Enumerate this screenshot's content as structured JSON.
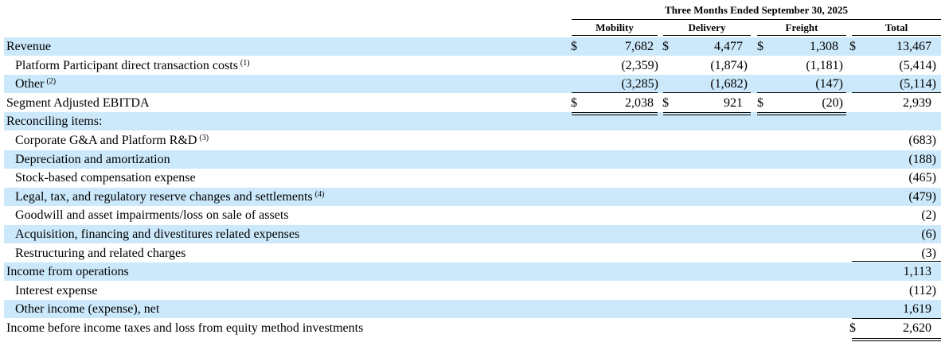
{
  "header": {
    "period": "Three Months Ended September 30, 2025",
    "columns": [
      "Mobility",
      "Delivery",
      "Freight",
      "Total"
    ]
  },
  "rows": [
    {
      "label": "Revenue",
      "footnote": "",
      "indent": false,
      "shade": true,
      "cells": [
        {
          "cur": "$",
          "val": "7,682"
        },
        {
          "cur": "$",
          "val": "4,477"
        },
        {
          "cur": "$",
          "val": "1,308"
        },
        {
          "cur": "$",
          "val": "13,467"
        }
      ]
    },
    {
      "label": "Platform Participant direct transaction costs",
      "footnote": "(1)",
      "indent": true,
      "shade": false,
      "cells": [
        {
          "cur": "",
          "val": "(2,359)"
        },
        {
          "cur": "",
          "val": "(1,874)"
        },
        {
          "cur": "",
          "val": "(1,181)"
        },
        {
          "cur": "",
          "val": "(5,414)"
        }
      ]
    },
    {
      "label": "Other",
      "footnote": "(2)",
      "indent": true,
      "shade": true,
      "cells": [
        {
          "cur": "",
          "val": "(3,285)"
        },
        {
          "cur": "",
          "val": "(1,682)"
        },
        {
          "cur": "",
          "val": "(147)"
        },
        {
          "cur": "",
          "val": "(5,114)"
        }
      ]
    },
    {
      "label": "Segment Adjusted EBITDA",
      "footnote": "",
      "indent": false,
      "shade": false,
      "cells": [
        {
          "cur": "$",
          "val": "2,038"
        },
        {
          "cur": "$",
          "val": "921"
        },
        {
          "cur": "$",
          "val": "(20)"
        },
        {
          "cur": "",
          "val": "2,939"
        }
      ]
    },
    {
      "label": "Reconciling items:",
      "footnote": "",
      "indent": false,
      "shade": true,
      "cells": [
        {
          "cur": "",
          "val": ""
        },
        {
          "cur": "",
          "val": ""
        },
        {
          "cur": "",
          "val": ""
        },
        {
          "cur": "",
          "val": ""
        }
      ]
    },
    {
      "label": "Corporate G&A and Platform R&D",
      "footnote": "(3)",
      "indent": true,
      "shade": false,
      "cells": [
        {
          "cur": "",
          "val": ""
        },
        {
          "cur": "",
          "val": ""
        },
        {
          "cur": "",
          "val": ""
        },
        {
          "cur": "",
          "val": "(683)"
        }
      ]
    },
    {
      "label": "Depreciation and amortization",
      "footnote": "",
      "indent": true,
      "shade": true,
      "cells": [
        {
          "cur": "",
          "val": ""
        },
        {
          "cur": "",
          "val": ""
        },
        {
          "cur": "",
          "val": ""
        },
        {
          "cur": "",
          "val": "(188)"
        }
      ]
    },
    {
      "label": "Stock-based compensation expense",
      "footnote": "",
      "indent": true,
      "shade": false,
      "cells": [
        {
          "cur": "",
          "val": ""
        },
        {
          "cur": "",
          "val": ""
        },
        {
          "cur": "",
          "val": ""
        },
        {
          "cur": "",
          "val": "(465)"
        }
      ]
    },
    {
      "label": "Legal, tax, and regulatory reserve changes and settlements",
      "footnote": "(4)",
      "indent": true,
      "shade": true,
      "cells": [
        {
          "cur": "",
          "val": ""
        },
        {
          "cur": "",
          "val": ""
        },
        {
          "cur": "",
          "val": ""
        },
        {
          "cur": "",
          "val": "(479)"
        }
      ]
    },
    {
      "label": "Goodwill and asset impairments/loss on sale of assets",
      "footnote": "",
      "indent": true,
      "shade": false,
      "cells": [
        {
          "cur": "",
          "val": ""
        },
        {
          "cur": "",
          "val": ""
        },
        {
          "cur": "",
          "val": ""
        },
        {
          "cur": "",
          "val": "(2)"
        }
      ]
    },
    {
      "label": "Acquisition, financing and divestitures related expenses",
      "footnote": "",
      "indent": true,
      "shade": true,
      "cells": [
        {
          "cur": "",
          "val": ""
        },
        {
          "cur": "",
          "val": ""
        },
        {
          "cur": "",
          "val": ""
        },
        {
          "cur": "",
          "val": "(6)"
        }
      ]
    },
    {
      "label": "Restructuring and related charges",
      "footnote": "",
      "indent": true,
      "shade": false,
      "cells": [
        {
          "cur": "",
          "val": ""
        },
        {
          "cur": "",
          "val": ""
        },
        {
          "cur": "",
          "val": ""
        },
        {
          "cur": "",
          "val": "(3)"
        }
      ]
    },
    {
      "label": "Income from operations",
      "footnote": "",
      "indent": false,
      "shade": true,
      "cells": [
        {
          "cur": "",
          "val": ""
        },
        {
          "cur": "",
          "val": ""
        },
        {
          "cur": "",
          "val": ""
        },
        {
          "cur": "",
          "val": "1,113"
        }
      ]
    },
    {
      "label": "Interest expense",
      "footnote": "",
      "indent": true,
      "shade": false,
      "cells": [
        {
          "cur": "",
          "val": ""
        },
        {
          "cur": "",
          "val": ""
        },
        {
          "cur": "",
          "val": ""
        },
        {
          "cur": "",
          "val": "(112)"
        }
      ]
    },
    {
      "label": "Other income (expense), net",
      "footnote": "",
      "indent": true,
      "shade": true,
      "cells": [
        {
          "cur": "",
          "val": ""
        },
        {
          "cur": "",
          "val": ""
        },
        {
          "cur": "",
          "val": ""
        },
        {
          "cur": "",
          "val": "1,619"
        }
      ]
    },
    {
      "label": "Income before income taxes and loss from equity method investments",
      "footnote": "",
      "indent": false,
      "shade": false,
      "cells": [
        {
          "cur": "",
          "val": ""
        },
        {
          "cur": "",
          "val": ""
        },
        {
          "cur": "",
          "val": ""
        },
        {
          "cur": "$",
          "val": "2,620"
        }
      ]
    }
  ]
}
